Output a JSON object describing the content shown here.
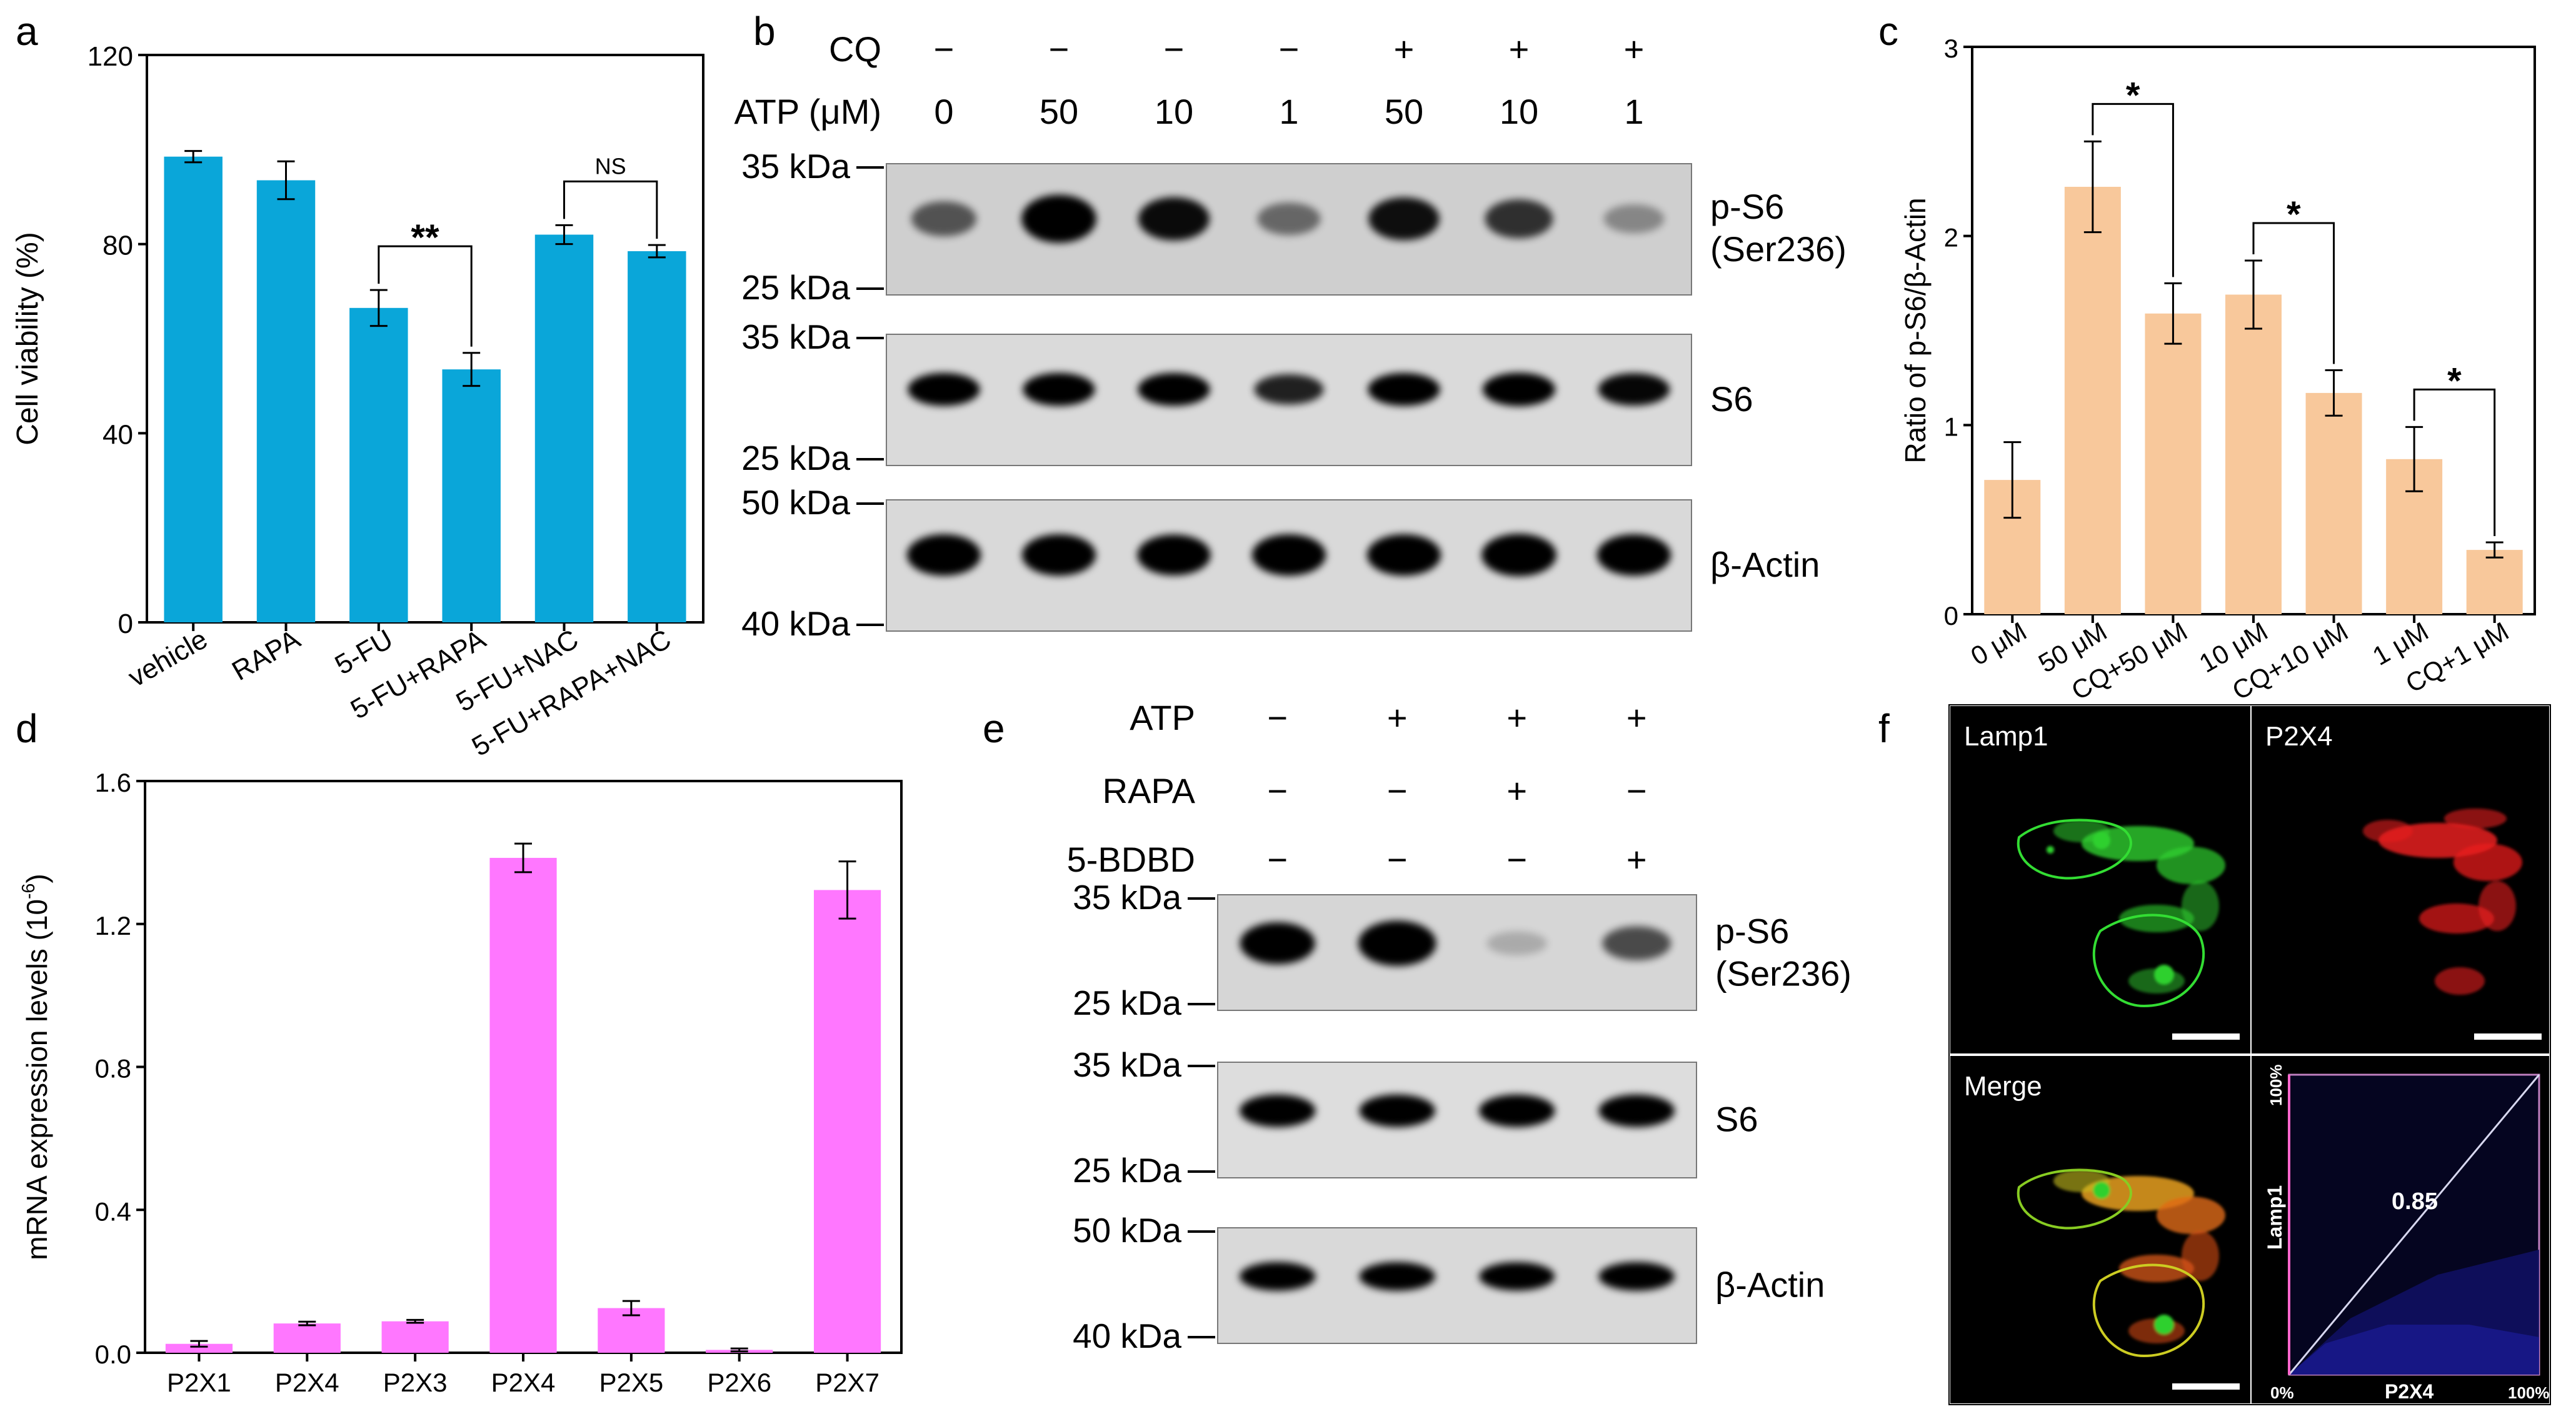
{
  "panel_letters": [
    "a",
    "b",
    "c",
    "d",
    "e",
    "f"
  ],
  "colors": {
    "panel_a": "#0aa6d9",
    "panel_c": "#f8c89b",
    "panel_d": "#ff77ff"
  },
  "chart_data": [
    {
      "id": "a",
      "type": "bar",
      "ylabel": "Cell viability (%)",
      "ylim": [
        0,
        120
      ],
      "yticks": [
        0,
        40,
        80,
        120
      ],
      "categories": [
        "vehicle",
        "RAPA",
        "5-FU",
        "5-FU+RAPA",
        "5-FU+NAC",
        "5-FU+RAPA+NAC"
      ],
      "values": [
        98.5,
        93.5,
        66.5,
        53.5,
        82,
        78.5
      ],
      "errors": [
        1.2,
        4.0,
        3.8,
        3.5,
        2.0,
        1.3
      ],
      "annotations": [
        {
          "from": 2,
          "to": 3,
          "label": "**"
        },
        {
          "from": 4,
          "to": 5,
          "label": "NS"
        }
      ]
    },
    {
      "id": "c",
      "type": "bar",
      "ylabel": "Ratio of p-S6/β-Actin",
      "ylim": [
        0,
        3
      ],
      "yticks": [
        0,
        1,
        2,
        3
      ],
      "categories": [
        "0 μM",
        "50 μM",
        "CQ+50 μM",
        "10 μM",
        "CQ+10 μM",
        "1 μM",
        "CQ+1 μM"
      ],
      "values": [
        0.71,
        2.26,
        1.59,
        1.69,
        1.17,
        0.82,
        0.34
      ],
      "errors": [
        0.2,
        0.24,
        0.16,
        0.18,
        0.12,
        0.17,
        0.04
      ],
      "annotations": [
        {
          "from": 1,
          "to": 2,
          "label": "*"
        },
        {
          "from": 3,
          "to": 4,
          "label": "*"
        },
        {
          "from": 5,
          "to": 6,
          "label": "*"
        }
      ]
    },
    {
      "id": "d",
      "type": "bar",
      "ylabel": "mRNA expression levels (10",
      "ylabel_sup": "-6",
      "ylabel_end": ")",
      "ylim": [
        0,
        1.6
      ],
      "yticks": [
        "0.0",
        "0.4",
        "0.8",
        "1.2",
        "1.6"
      ],
      "categories": [
        "P2X1",
        "P2X4",
        "P2X3",
        "P2X4",
        "P2X5",
        "P2X6",
        "P2X7"
      ],
      "values": [
        0.025,
        0.082,
        0.088,
        1.385,
        0.125,
        0.008,
        1.295
      ],
      "errors": [
        0.008,
        0.005,
        0.004,
        0.04,
        0.02,
        0.004,
        0.08
      ]
    }
  ],
  "blot_b": {
    "header_labels": [
      "CQ",
      "ATP (μM)"
    ],
    "cq": [
      "−",
      "−",
      "−",
      "−",
      "+",
      "+",
      "+"
    ],
    "atp": [
      "0",
      "50",
      "10",
      "1",
      "50",
      "10",
      "1"
    ],
    "markers": [
      "35 kDa",
      "25 kDa",
      "35 kDa",
      "25 kDa",
      "50 kDa",
      "40 kDa"
    ],
    "rows": [
      {
        "label1": "p-S6",
        "label2": "(Ser236)"
      },
      {
        "label1": "S6",
        "label2": ""
      },
      {
        "label1": "β-Actin",
        "label2": ""
      }
    ],
    "intensity": [
      [
        0.45,
        1.0,
        0.8,
        0.35,
        0.78,
        0.62,
        0.2
      ],
      [
        0.85,
        0.85,
        0.85,
        0.7,
        0.85,
        0.88,
        0.82
      ],
      [
        0.95,
        0.95,
        0.92,
        0.95,
        0.95,
        1.0,
        0.95
      ]
    ]
  },
  "blot_e": {
    "header_labels": [
      "ATP",
      "RAPA",
      "5-BDBD"
    ],
    "atp": [
      "−",
      "+",
      "+",
      "+"
    ],
    "rapa": [
      "−",
      "−",
      "+",
      "−"
    ],
    "bdbd": [
      "−",
      "−",
      "−",
      "+"
    ],
    "markers": [
      "35 kDa",
      "25 kDa",
      "35 kDa",
      "25 kDa",
      "50 kDa",
      "40 kDa"
    ],
    "rows": [
      {
        "label1": "p-S6",
        "label2": "(Ser236)"
      },
      {
        "label1": "S6",
        "label2": ""
      },
      {
        "label1": "β-Actin",
        "label2": ""
      }
    ],
    "intensity": [
      [
        0.85,
        1.0,
        0.05,
        0.5
      ],
      [
        0.9,
        0.9,
        0.9,
        0.9
      ],
      [
        0.9,
        0.9,
        0.88,
        0.9
      ]
    ]
  },
  "panel_f": {
    "labels": [
      "Lamp1",
      "P2X4",
      "Merge"
    ],
    "coloc_value": "0.85",
    "coloc_xlabel": "P2X4",
    "coloc_ylabel": "Lamp1",
    "axis_min": "0%",
    "axis_max_x": "100%",
    "axis_max_y": "100%"
  }
}
